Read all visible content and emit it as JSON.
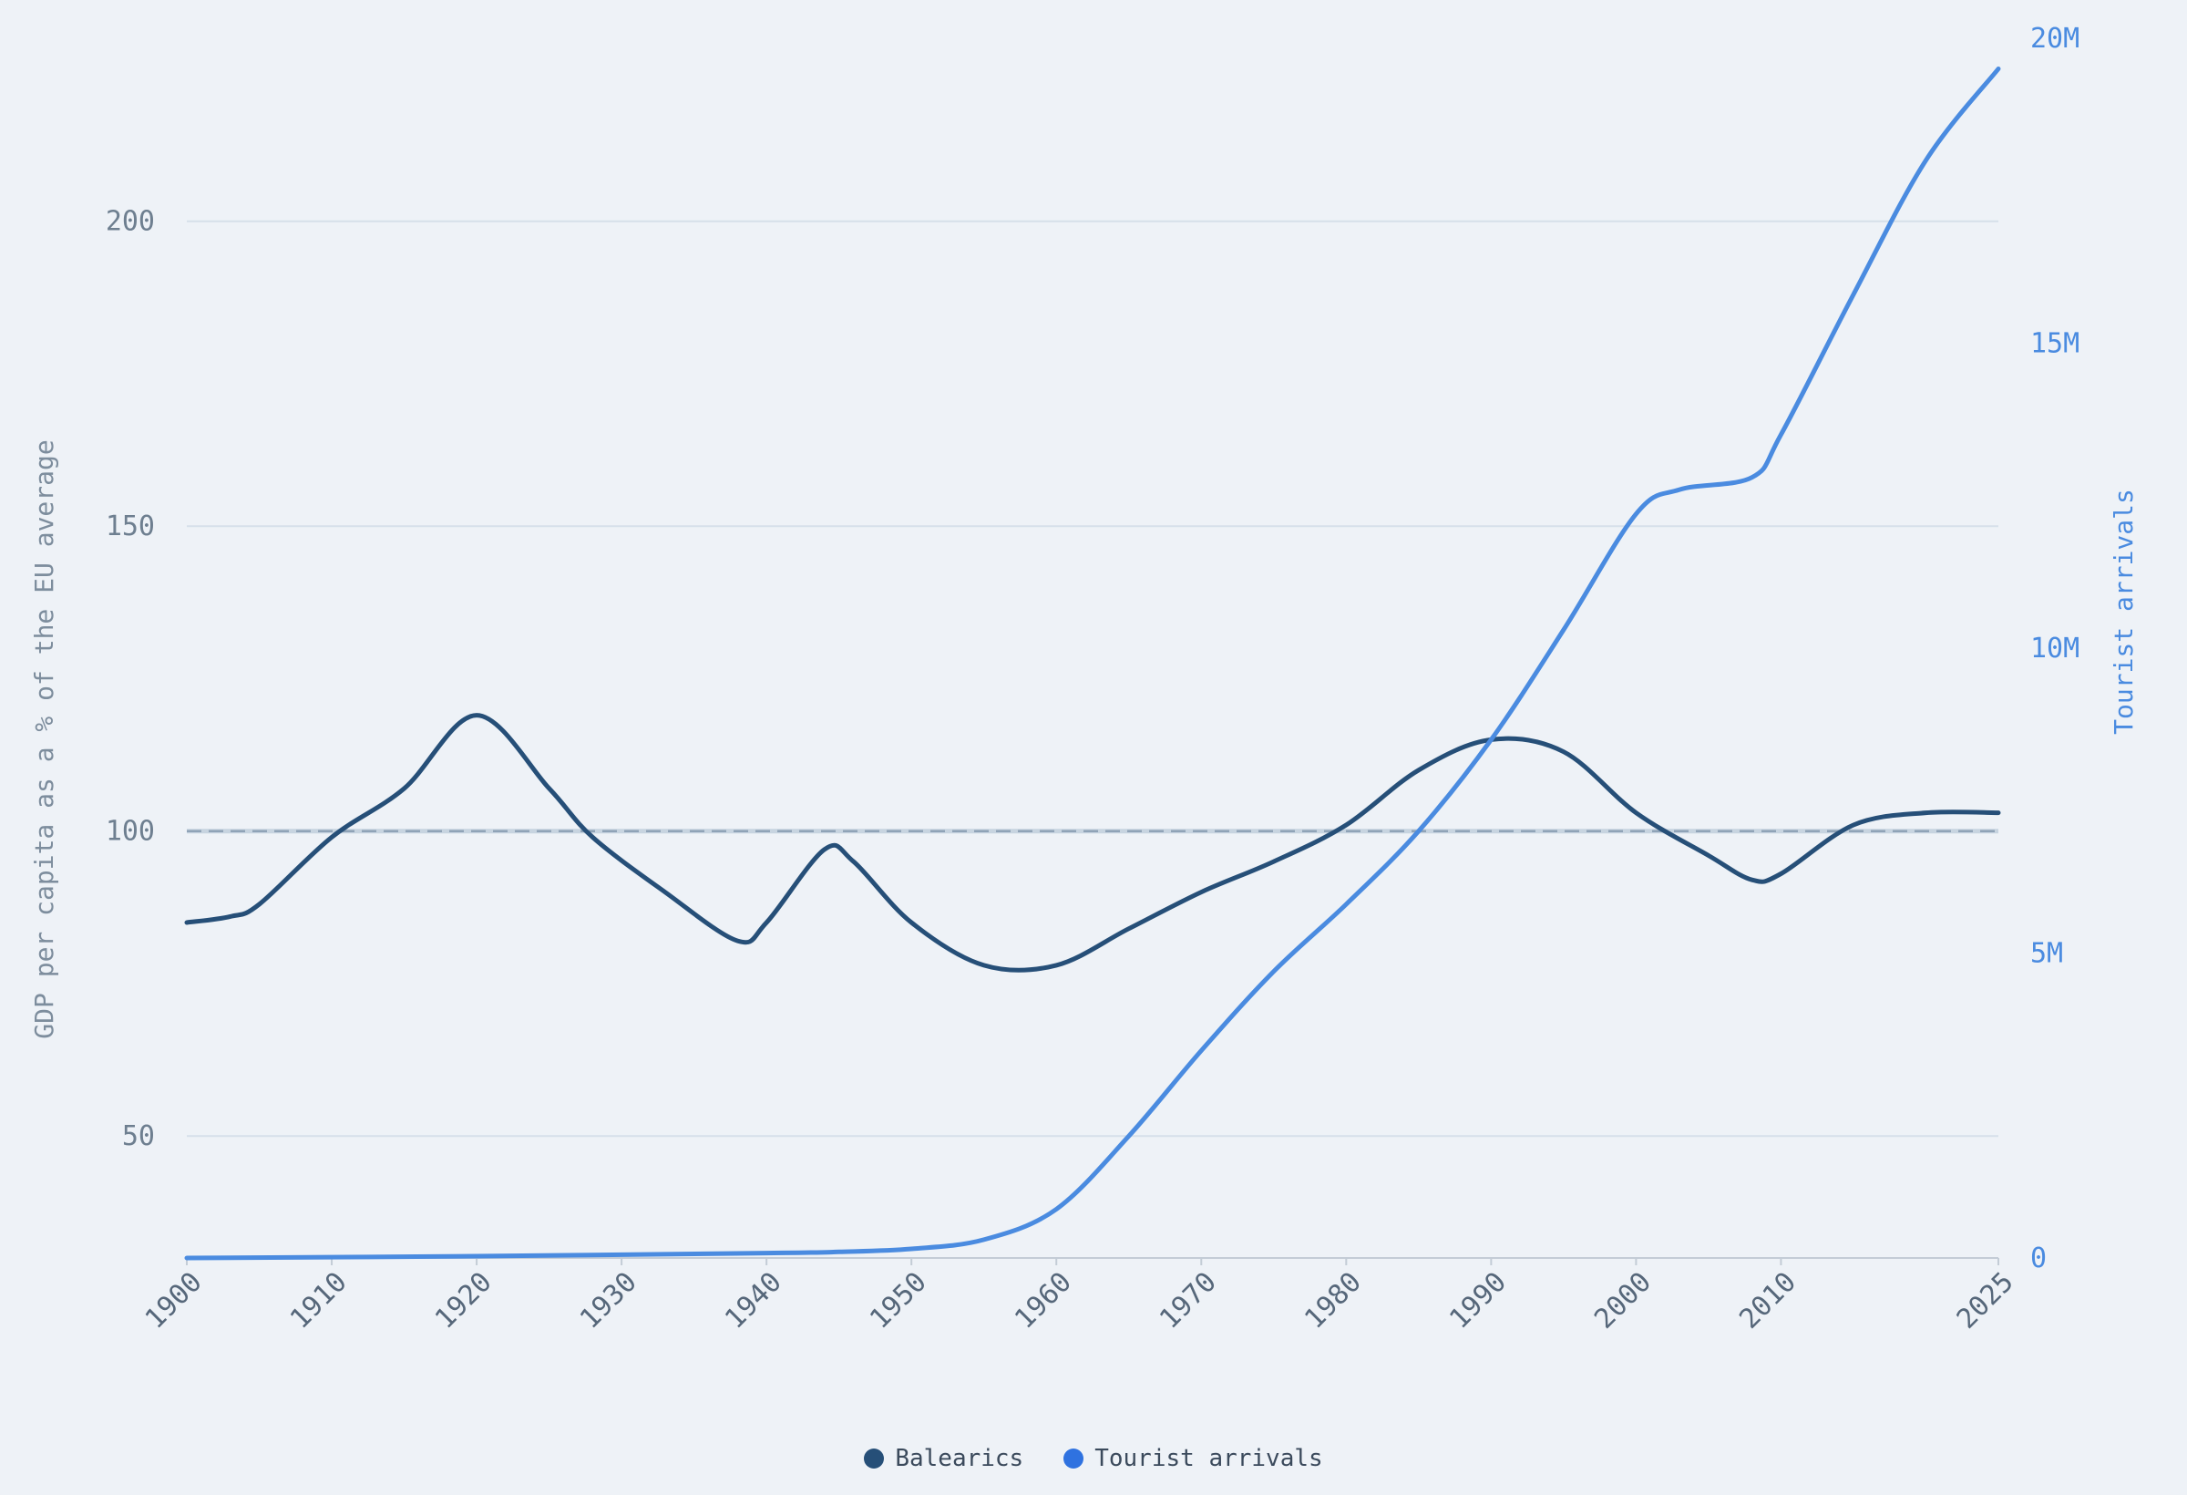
{
  "chart_data": {
    "type": "line",
    "x_ticks": [
      "1900",
      "1910",
      "1920",
      "1930",
      "1940",
      "1950",
      "1960",
      "1970",
      "1980",
      "1990",
      "2000",
      "2010",
      "2025"
    ],
    "xlim": [
      1900,
      2025
    ],
    "y_left": {
      "label": "GDP per capita as a % of the EU average",
      "ticks": [
        "50",
        "100",
        "150",
        "200"
      ],
      "ylim": [
        30,
        230
      ]
    },
    "y_right": {
      "label": "Tourist arrivals",
      "ticks": [
        "0",
        "5M",
        "10M",
        "15M",
        "20M"
      ],
      "ylim": [
        0,
        20000000
      ]
    },
    "reference_line": {
      "value": 100,
      "style": "dashed"
    },
    "grid": true,
    "legend_position": "bottom-center",
    "series": [
      {
        "name": "Balearics",
        "axis": "left",
        "color": "#264f78",
        "x": [
          1900,
          1903,
          1905,
          1910,
          1915,
          1920,
          1925,
          1928,
          1933,
          1938,
          1940,
          1944,
          1946,
          1950,
          1955,
          1960,
          1965,
          1970,
          1975,
          1980,
          1985,
          1990,
          1995,
          2000,
          2005,
          2008,
          2010,
          2015,
          2020,
          2025
        ],
        "values": [
          85,
          86,
          88,
          99,
          107,
          119,
          107,
          99,
          90,
          82,
          85,
          97,
          95,
          85,
          78,
          78,
          84,
          90,
          95,
          101,
          110,
          115,
          113,
          103,
          96,
          92,
          93,
          101,
          103,
          103
        ]
      },
      {
        "name": "Tourist arrivals",
        "axis": "right",
        "color": "#4a8be0",
        "x": [
          1900,
          1920,
          1940,
          1945,
          1950,
          1955,
          1960,
          1965,
          1970,
          1975,
          1980,
          1985,
          1990,
          1995,
          2000,
          2003,
          2008,
          2010,
          2015,
          2020,
          2025
        ],
        "values": [
          0,
          30000,
          80000,
          100000,
          150000,
          300000,
          800000,
          2000000,
          3400000,
          4700000,
          5800000,
          7000000,
          8500000,
          10300000,
          12200000,
          12600000,
          12800000,
          13500000,
          15800000,
          18000000,
          19500000
        ]
      }
    ]
  }
}
